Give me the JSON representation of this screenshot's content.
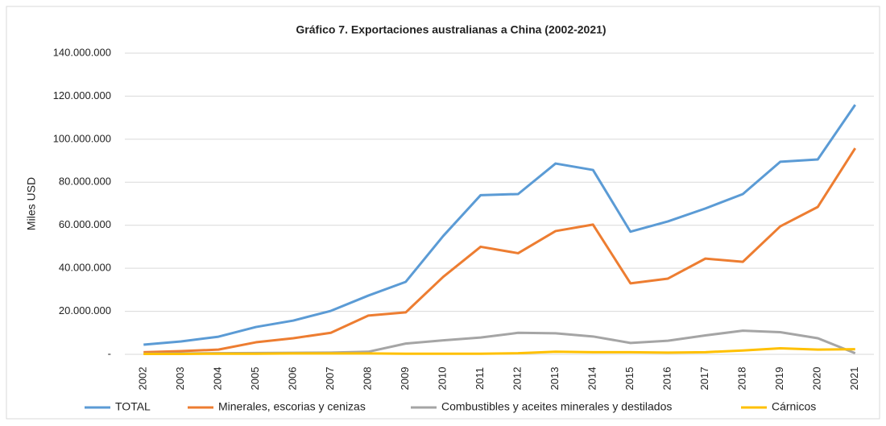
{
  "chart_data": {
    "type": "line",
    "title": "Gráfico 7. Exportaciones australianas a China (2002-2021)",
    "y_label": "Miles USD",
    "categories": [
      "2002",
      "2003",
      "2004",
      "2005",
      "2006",
      "2007",
      "2008",
      "2009",
      "2010",
      "2011",
      "2012",
      "2013",
      "2014",
      "2015",
      "2016",
      "2017",
      "2018",
      "2019",
      "2020",
      "2021"
    ],
    "series": [
      {
        "name": "TOTAL",
        "color": "#5b9bd5",
        "values": [
          4500000,
          6000000,
          8200000,
          12700000,
          15700000,
          20200000,
          27300000,
          33700000,
          55000000,
          74000000,
          74500000,
          88700000,
          85700000,
          57000000,
          61800000,
          67800000,
          74500000,
          89500000,
          90600000,
          116000000
        ]
      },
      {
        "name": "Minerales, escorias y cenizas",
        "color": "#ed7d31",
        "values": [
          1000000,
          1500000,
          2200000,
          5600000,
          7500000,
          10000000,
          18000000,
          19500000,
          36000000,
          50000000,
          47000000,
          57300000,
          60300000,
          33000000,
          35200000,
          44500000,
          43000000,
          59500000,
          68500000,
          95800000
        ]
      },
      {
        "name": "Combustibles y aceites minerales y destilados",
        "color": "#a5a5a5",
        "values": [
          300000,
          400000,
          500000,
          600000,
          700000,
          800000,
          1200000,
          5000000,
          6500000,
          7800000,
          10000000,
          9800000,
          8300000,
          5300000,
          6300000,
          8800000,
          11000000,
          10300000,
          7500000,
          500000
        ]
      },
      {
        "name": "Cárnicos",
        "color": "#ffc000",
        "values": [
          200000,
          200000,
          300000,
          300000,
          400000,
          400000,
          400000,
          300000,
          300000,
          300000,
          500000,
          1200000,
          1000000,
          1000000,
          800000,
          1000000,
          1800000,
          2800000,
          2200000,
          2400000
        ]
      }
    ],
    "ylim": [
      0,
      140000000
    ],
    "yticks": [
      {
        "value": 0,
        "label": "-"
      },
      {
        "value": 20000000,
        "label": "20.000.000"
      },
      {
        "value": 40000000,
        "label": "40.000.000"
      },
      {
        "value": 60000000,
        "label": "60.000.000"
      },
      {
        "value": 80000000,
        "label": "80.000.000"
      },
      {
        "value": 100000000,
        "label": "100.000.000"
      },
      {
        "value": 120000000,
        "label": "120.000.000"
      },
      {
        "value": 140000000,
        "label": "140.000.000"
      }
    ],
    "grid": true
  }
}
